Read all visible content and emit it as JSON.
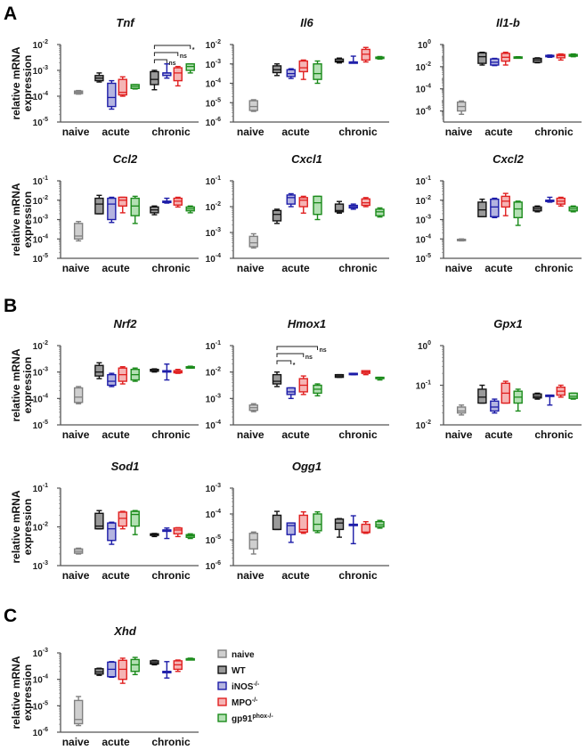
{
  "panel_letters": [
    "A",
    "B",
    "C"
  ],
  "legend": [
    {
      "label": "naive",
      "sup": "",
      "color": "#808080",
      "fill": "#cfcfcf"
    },
    {
      "label": "WT",
      "sup": "",
      "color": "#111111",
      "fill": "#9a9a9a"
    },
    {
      "label": "iNOS",
      "sup": "-/-",
      "color": "#1c1ca8",
      "fill": "#b4b4e0"
    },
    {
      "label": "MPO",
      "sup": "-/-",
      "color": "#e02020",
      "fill": "#f5b4b4"
    },
    {
      "label": "gp91",
      "sup": "phox-/-",
      "color": "#1a8a1a",
      "fill": "#b4e0b4"
    }
  ],
  "chart_data": {
    "type": "box",
    "scale": "log10",
    "value_format": "log10 exponent of relative mRNA expression, [min, q1, median, q3, max]",
    "ylabel": [
      "relative mRNA",
      "expression"
    ],
    "groups": [
      "naive",
      "acute",
      "chronic"
    ],
    "box_order": [
      {
        "group": "naive",
        "series": 0
      },
      {
        "group": "acute",
        "series": 1
      },
      {
        "group": "acute",
        "series": 2
      },
      {
        "group": "acute",
        "series": 3
      },
      {
        "group": "acute",
        "series": 4
      },
      {
        "group": "chronic",
        "series": 1
      },
      {
        "group": "chronic",
        "series": 2
      },
      {
        "group": "chronic",
        "series": 3
      },
      {
        "group": "chronic",
        "series": 4
      }
    ],
    "panels": [
      {
        "section": "A",
        "title": "Tnf",
        "ylim": [
          -5,
          -2
        ],
        "ticks": [
          -2,
          -3,
          -4,
          -5
        ],
        "boxes": [
          [
            -3.92,
            -3.9,
            -3.85,
            -3.8,
            -3.78
          ],
          [
            -3.45,
            -3.4,
            -3.3,
            -3.2,
            -3.1
          ],
          [
            -4.5,
            -4.4,
            -4.05,
            -3.5,
            -3.4
          ],
          [
            -4.0,
            -3.95,
            -3.85,
            -3.35,
            -3.25
          ],
          [
            -3.72,
            -3.7,
            -3.62,
            -3.55,
            -3.55
          ],
          [
            -3.75,
            -3.55,
            -3.35,
            -3.05,
            -3.0
          ],
          [
            -3.3,
            -3.2,
            -3.1,
            -3.1,
            -2.75
          ],
          [
            -3.6,
            -3.4,
            -3.1,
            -2.9,
            -2.85
          ],
          [
            -3.1,
            -3.0,
            -2.85,
            -2.75,
            -2.75
          ]
        ],
        "annotations": [
          {
            "from": 5,
            "to": 6,
            "label": "ns"
          },
          {
            "from": 5,
            "to": 7,
            "label": "ns"
          },
          {
            "from": 5,
            "to": 8,
            "label": "*"
          }
        ]
      },
      {
        "section": "A",
        "title": "Il6",
        "ylim": [
          -6,
          -2
        ],
        "ticks": [
          -2,
          -3,
          -4,
          -5,
          -6
        ],
        "boxes": [
          [
            -5.45,
            -5.4,
            -5.2,
            -4.9,
            -4.85
          ],
          [
            -3.6,
            -3.45,
            -3.3,
            -3.1,
            -3.0
          ],
          [
            -3.75,
            -3.65,
            -3.5,
            -3.3,
            -3.25
          ],
          [
            -3.8,
            -3.4,
            -3.2,
            -2.85,
            -2.8
          ],
          [
            -4.0,
            -3.8,
            -3.5,
            -3.0,
            -2.85
          ],
          [
            -2.95,
            -2.9,
            -2.85,
            -2.75,
            -2.7
          ],
          [
            -2.9,
            -2.9,
            -2.9,
            -2.9,
            -2.6
          ],
          [
            -2.9,
            -2.8,
            -2.5,
            -2.25,
            -2.15
          ],
          [
            -2.75,
            -2.72,
            -2.7,
            -2.65,
            -2.62
          ]
        ],
        "annotations": []
      },
      {
        "section": "A",
        "title": "Il1-b",
        "ylim": [
          -7,
          0
        ],
        "ticks": [
          0,
          -2,
          -4,
          -6
        ],
        "boxes": [
          [
            -6.3,
            -6.0,
            -5.6,
            -5.2,
            -5.1
          ],
          [
            -1.85,
            -1.7,
            -1.1,
            -0.75,
            -0.7
          ],
          [
            -1.9,
            -1.85,
            -1.6,
            -1.3,
            -1.25
          ],
          [
            -1.85,
            -1.5,
            -1.15,
            -0.8,
            -0.7
          ],
          [
            -1.2,
            -1.18,
            -1.15,
            -1.12,
            -1.1
          ],
          [
            -1.65,
            -1.6,
            -1.4,
            -1.25,
            -1.2
          ],
          [
            -1.15,
            -1.1,
            -1.05,
            -0.98,
            -0.95
          ],
          [
            -1.4,
            -1.2,
            -1.0,
            -0.9,
            -0.85
          ],
          [
            -1.1,
            -1.05,
            -0.95,
            -0.9,
            -0.85
          ]
        ],
        "annotations": []
      },
      {
        "section": "A",
        "title": "Ccl2",
        "ylim": [
          -5,
          -1
        ],
        "ticks": [
          -1,
          -2,
          -3,
          -4,
          -5
        ],
        "boxes": [
          [
            -4.1,
            -4.0,
            -3.85,
            -3.2,
            -3.1
          ],
          [
            -2.7,
            -2.7,
            -2.2,
            -1.9,
            -1.75
          ],
          [
            -3.15,
            -3.0,
            -2.2,
            -1.9,
            -1.85
          ],
          [
            -2.65,
            -2.3,
            -2.0,
            -1.85,
            -1.85
          ],
          [
            -3.2,
            -2.8,
            -2.3,
            -1.9,
            -1.8
          ],
          [
            -2.75,
            -2.65,
            -2.5,
            -2.35,
            -2.3
          ],
          [
            -2.15,
            -2.1,
            -2.1,
            -2.05,
            -1.9
          ],
          [
            -2.35,
            -2.25,
            -2.05,
            -1.9,
            -1.85
          ],
          [
            -2.65,
            -2.55,
            -2.45,
            -2.35,
            -2.3
          ]
        ],
        "annotations": []
      },
      {
        "section": "A",
        "title": "Cxcl1",
        "ylim": [
          -4,
          -1
        ],
        "ticks": [
          -1,
          -2,
          -3,
          -4
        ],
        "boxes": [
          [
            -3.6,
            -3.55,
            -3.4,
            -3.15,
            -3.05
          ],
          [
            -2.65,
            -2.55,
            -2.3,
            -2.15,
            -2.1
          ],
          [
            -2.0,
            -1.9,
            -1.65,
            -1.55,
            -1.5
          ],
          [
            -2.25,
            -2.0,
            -1.75,
            -1.65,
            -1.6
          ],
          [
            -2.5,
            -2.3,
            -1.85,
            -1.6,
            -1.6
          ],
          [
            -2.25,
            -2.2,
            -2.15,
            -1.9,
            -1.8
          ],
          [
            -2.1,
            -2.05,
            -2.0,
            -1.95,
            -1.9
          ],
          [
            -2.0,
            -1.95,
            -1.85,
            -1.7,
            -1.65
          ],
          [
            -2.4,
            -2.35,
            -2.2,
            -2.1,
            -2.05
          ]
        ],
        "annotations": []
      },
      {
        "section": "A",
        "title": "Cxcl2",
        "ylim": [
          -5,
          -1
        ],
        "ticks": [
          -1,
          -2,
          -3,
          -4,
          -5
        ],
        "boxes": [
          [
            -4.1,
            -4.08,
            -4.05,
            -4.02,
            -4.0
          ],
          [
            -2.85,
            -2.85,
            -2.5,
            -2.1,
            -1.95
          ],
          [
            -2.9,
            -2.85,
            -2.35,
            -1.95,
            -1.9
          ],
          [
            -2.8,
            -2.35,
            -2.05,
            -1.8,
            -1.65
          ],
          [
            -3.3,
            -2.9,
            -2.45,
            -2.1,
            -2.05
          ],
          [
            -2.6,
            -2.55,
            -2.45,
            -2.35,
            -2.3
          ],
          [
            -2.1,
            -2.05,
            -2.05,
            -2.0,
            -1.85
          ],
          [
            -2.3,
            -2.2,
            -2.05,
            -1.9,
            -1.85
          ],
          [
            -2.6,
            -2.55,
            -2.45,
            -2.35,
            -2.3
          ]
        ],
        "annotations": []
      },
      {
        "section": "B",
        "title": "Nrf2",
        "ylim": [
          -5,
          -2
        ],
        "ticks": [
          -2,
          -3,
          -4,
          -5
        ],
        "boxes": [
          [
            -4.2,
            -4.15,
            -3.95,
            -3.6,
            -3.55
          ],
          [
            -3.25,
            -3.15,
            -3.0,
            -2.75,
            -2.65
          ],
          [
            -3.55,
            -3.5,
            -3.35,
            -3.1,
            -3.05
          ],
          [
            -3.45,
            -3.35,
            -3.1,
            -2.85,
            -2.8
          ],
          [
            -3.35,
            -3.3,
            -3.1,
            -2.9,
            -2.85
          ],
          [
            -3.0,
            -2.97,
            -2.95,
            -2.9,
            -2.88
          ],
          [
            -3.3,
            -2.95,
            -2.95,
            -2.95,
            -2.7
          ],
          [
            -3.05,
            -3.03,
            -3.0,
            -2.95,
            -2.9
          ],
          [
            -2.85,
            -2.83,
            -2.82,
            -2.8,
            -2.78
          ]
        ],
        "annotations": []
      },
      {
        "section": "B",
        "title": "Hmox1",
        "ylim": [
          -4,
          -1
        ],
        "ticks": [
          -1,
          -2,
          -3,
          -4
        ],
        "boxes": [
          [
            -3.5,
            -3.45,
            -3.35,
            -3.25,
            -3.2
          ],
          [
            -2.55,
            -2.45,
            -2.35,
            -2.1,
            -2.0
          ],
          [
            -3.0,
            -2.85,
            -2.75,
            -2.6,
            -2.6
          ],
          [
            -2.85,
            -2.75,
            -2.5,
            -2.25,
            -2.15
          ],
          [
            -2.9,
            -2.8,
            -2.65,
            -2.5,
            -2.45
          ],
          [
            -2.2,
            -2.2,
            -2.15,
            -2.1,
            -2.1
          ],
          [
            -2.1,
            -2.1,
            -2.08,
            -2.05,
            -2.05
          ],
          [
            -2.1,
            -2.05,
            -2.0,
            -1.95,
            -1.95
          ],
          [
            -2.3,
            -2.25,
            -2.22,
            -2.2,
            -2.2
          ]
        ],
        "annotations": [
          {
            "from": 1,
            "to": 2,
            "label": "*"
          },
          {
            "from": 1,
            "to": 3,
            "label": "ns"
          },
          {
            "from": 1,
            "to": 4,
            "label": "ns"
          }
        ]
      },
      {
        "section": "B",
        "title": "Gpx1",
        "ylim": [
          -2,
          0
        ],
        "ticks": [
          0,
          -1,
          -2
        ],
        "boxes": [
          [
            -1.75,
            -1.7,
            -1.65,
            -1.55,
            -1.5
          ],
          [
            -1.45,
            -1.45,
            -1.3,
            -1.1,
            -1.0
          ],
          [
            -1.7,
            -1.65,
            -1.55,
            -1.4,
            -1.35
          ],
          [
            -1.45,
            -1.45,
            -1.2,
            -0.95,
            -0.9
          ],
          [
            -1.65,
            -1.45,
            -1.3,
            -1.15,
            -1.1
          ],
          [
            -1.35,
            -1.32,
            -1.28,
            -1.22,
            -1.2
          ],
          [
            -1.5,
            -1.25,
            -1.25,
            -1.25,
            -1.25
          ],
          [
            -1.3,
            -1.25,
            -1.15,
            -1.05,
            -1.0
          ],
          [
            -1.35,
            -1.33,
            -1.28,
            -1.2,
            -1.2
          ]
        ],
        "annotations": []
      },
      {
        "section": "B",
        "title": "Sod1",
        "ylim": [
          -3,
          -1
        ],
        "ticks": [
          -1,
          -2,
          -3
        ],
        "boxes": [
          [
            -2.7,
            -2.68,
            -2.63,
            -2.57,
            -2.55
          ],
          [
            -2.05,
            -2.05,
            -1.98,
            -1.65,
            -1.58
          ],
          [
            -2.45,
            -2.35,
            -2.05,
            -1.9,
            -1.88
          ],
          [
            -2.05,
            -1.98,
            -1.78,
            -1.62,
            -1.6
          ],
          [
            -2.2,
            -1.98,
            -1.68,
            -1.6,
            -1.58
          ],
          [
            -2.25,
            -2.22,
            -2.2,
            -2.18,
            -2.17
          ],
          [
            -2.3,
            -2.08,
            -2.08,
            -2.08,
            -2.03
          ],
          [
            -2.25,
            -2.18,
            -2.08,
            -2.03,
            -2.02
          ],
          [
            -2.3,
            -2.27,
            -2.23,
            -2.2,
            -2.18
          ]
        ],
        "annotations": []
      },
      {
        "section": "B",
        "title": "Ogg1",
        "ylim": [
          -6,
          -3
        ],
        "ticks": [
          -3,
          -4,
          -5,
          -6
        ],
        "boxes": [
          [
            -5.55,
            -5.35,
            -5.0,
            -4.75,
            -4.7
          ],
          [
            -4.6,
            -4.6,
            -4.6,
            -4.05,
            -3.9
          ],
          [
            -5.1,
            -4.8,
            -4.45,
            -4.35,
            -4.35
          ],
          [
            -4.75,
            -4.7,
            -4.6,
            -4.05,
            -3.92
          ],
          [
            -4.72,
            -4.65,
            -4.4,
            -4.0,
            -3.92
          ],
          [
            -4.9,
            -4.6,
            -4.35,
            -4.2,
            -4.18
          ],
          [
            -5.15,
            -4.4,
            -4.4,
            -4.4,
            -4.07
          ],
          [
            -4.75,
            -4.72,
            -4.7,
            -4.4,
            -4.3
          ],
          [
            -4.55,
            -4.5,
            -4.42,
            -4.3,
            -4.25
          ]
        ],
        "annotations": []
      },
      {
        "section": "C",
        "title": "Xhd",
        "ylim": [
          -6,
          -3
        ],
        "ticks": [
          -3,
          -4,
          -5,
          -6
        ],
        "boxes": [
          [
            -5.75,
            -5.68,
            -5.52,
            -4.8,
            -4.65
          ],
          [
            -3.85,
            -3.8,
            -3.72,
            -3.6,
            -3.58
          ],
          [
            -3.92,
            -3.9,
            -3.62,
            -3.35,
            -3.33
          ],
          [
            -4.15,
            -4.0,
            -3.62,
            -3.28,
            -3.2
          ],
          [
            -3.82,
            -3.7,
            -3.45,
            -3.25,
            -3.17
          ],
          [
            -3.45,
            -3.42,
            -3.37,
            -3.3,
            -3.28
          ],
          [
            -3.95,
            -3.7,
            -3.7,
            -3.7,
            -3.33
          ],
          [
            -3.7,
            -3.62,
            -3.45,
            -3.3,
            -3.27
          ],
          [
            -3.25,
            -3.23,
            -3.22,
            -3.22,
            -3.2
          ]
        ],
        "annotations": []
      }
    ]
  }
}
